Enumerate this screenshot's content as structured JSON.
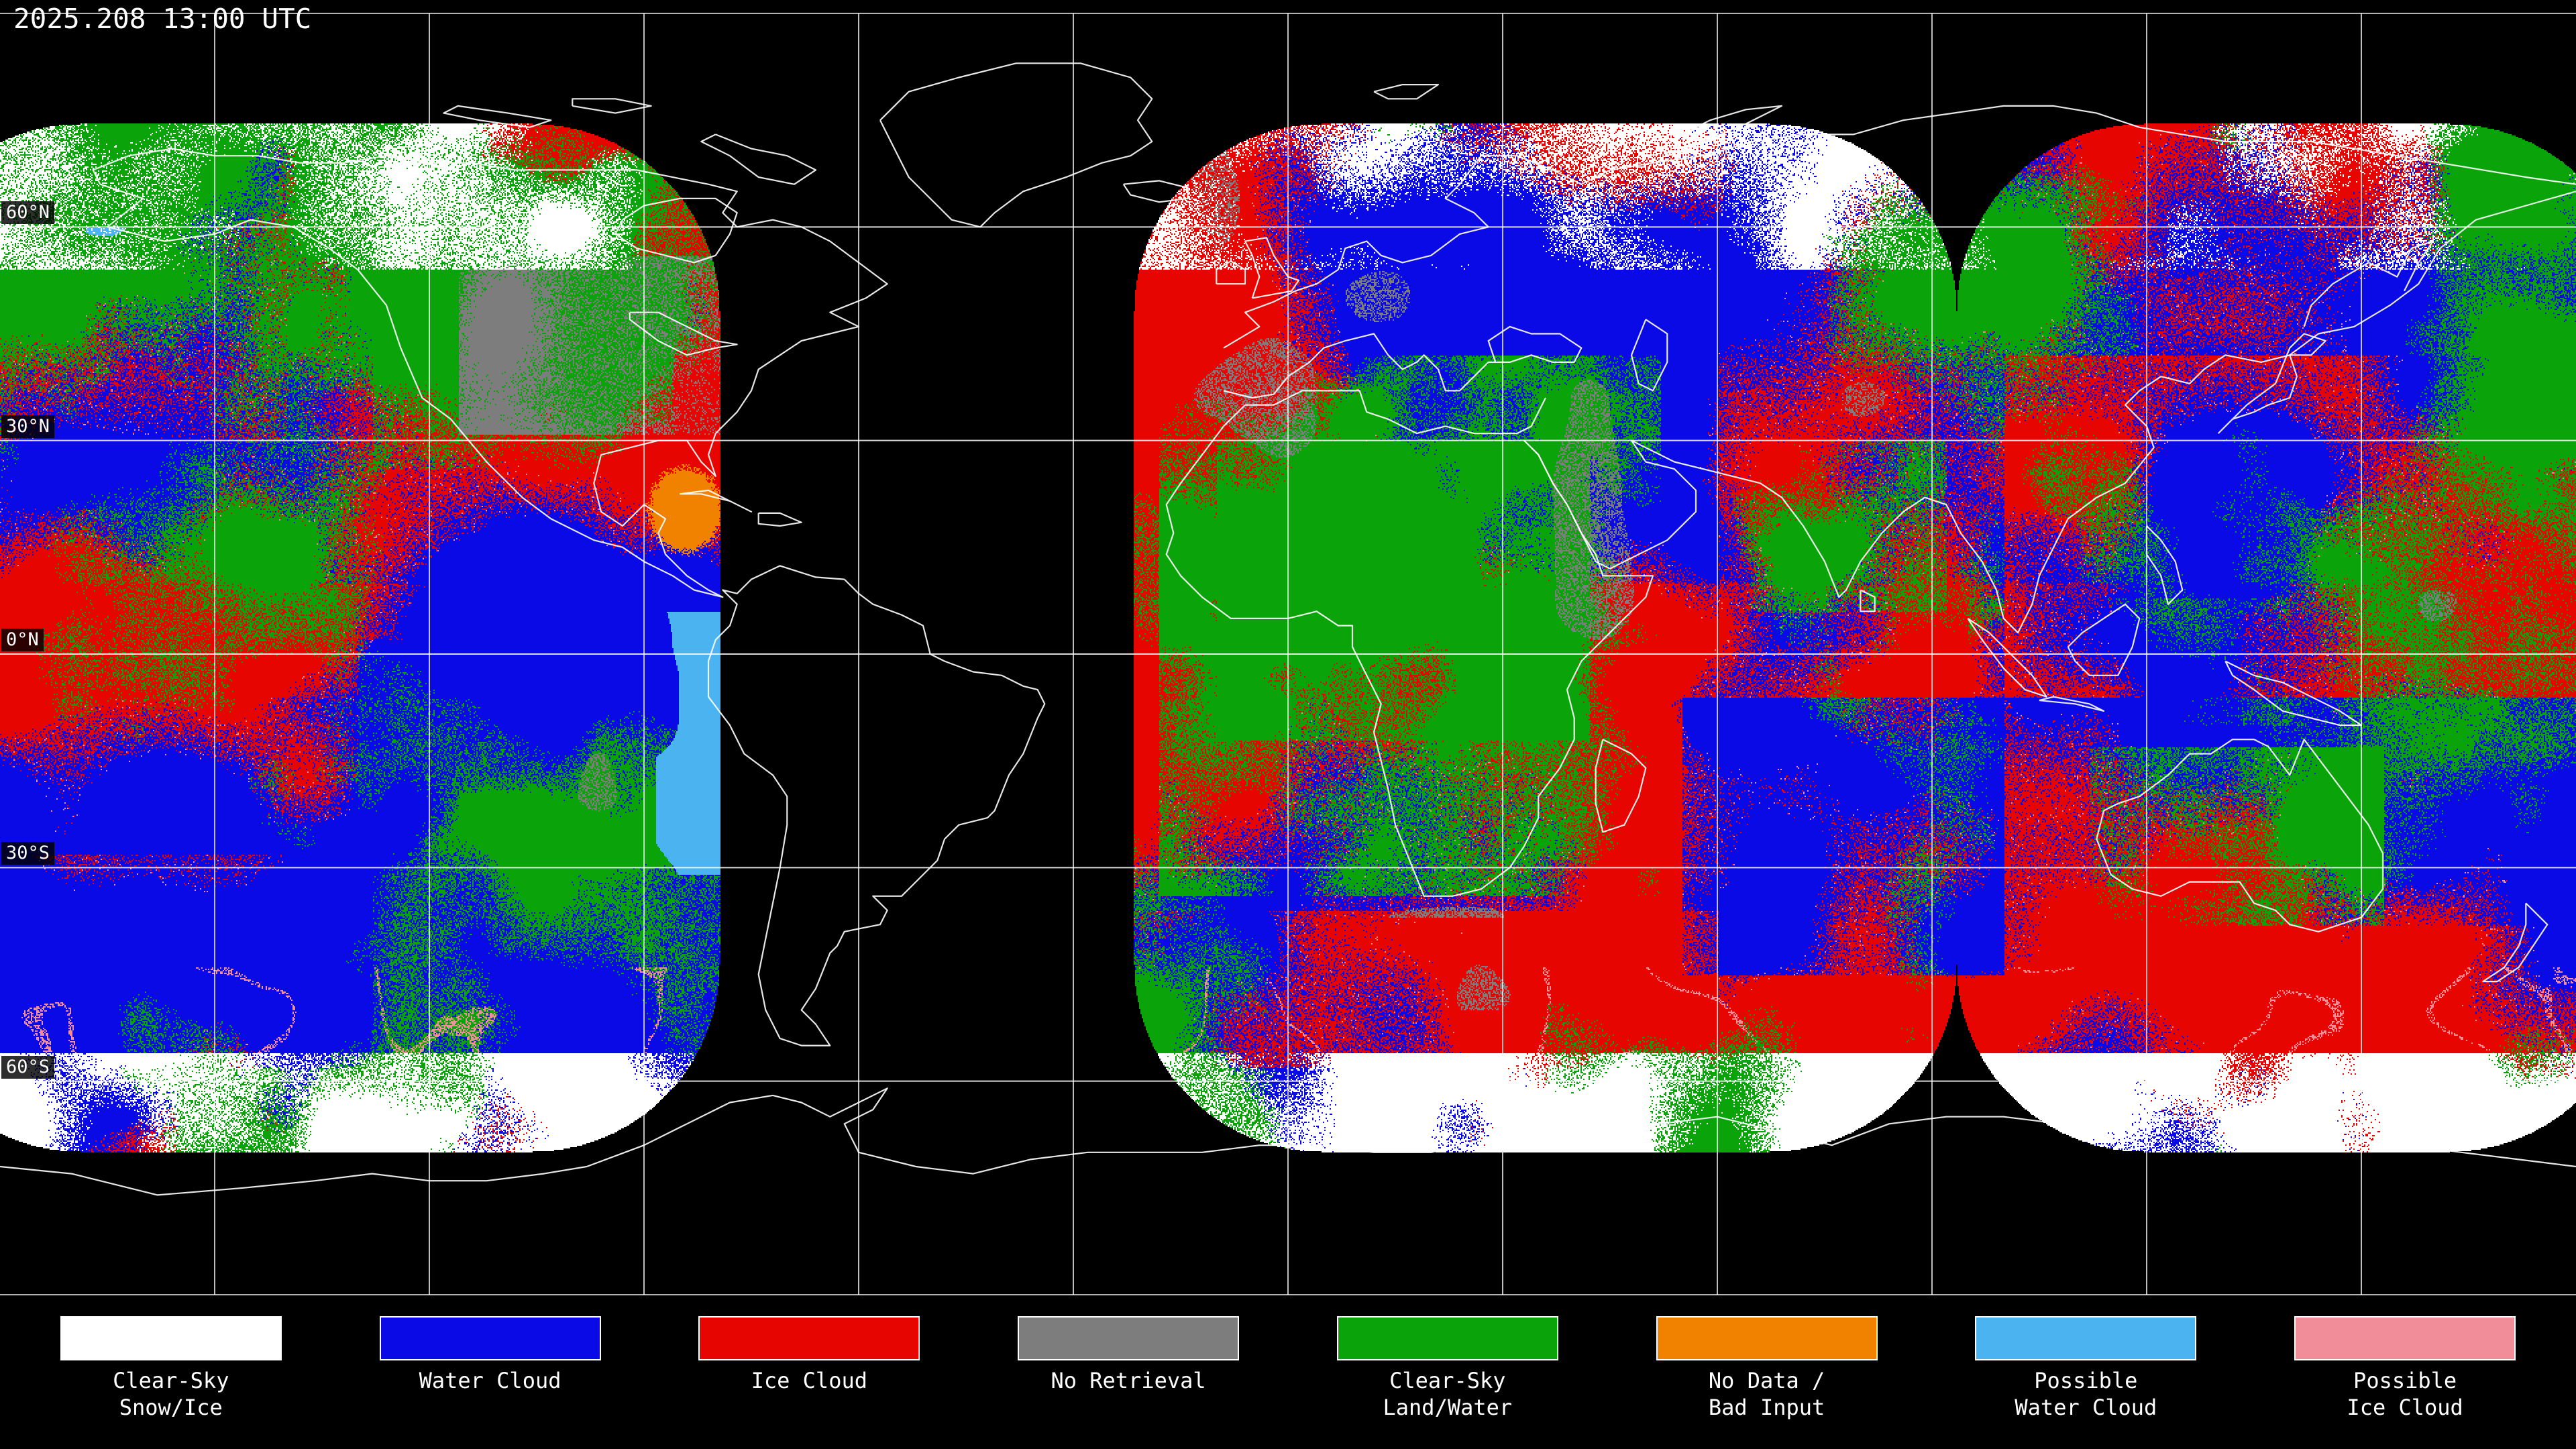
{
  "header": {
    "timestamp": "2025.208 13:00 UTC"
  },
  "map": {
    "background_color": "#000000",
    "coastline_color": "#ffffff",
    "grid_color": "#ffffff",
    "latitude_labels": [
      {
        "label": "60°N",
        "lat": 60
      },
      {
        "label": "30°N",
        "lat": 30
      },
      {
        "label": "0°N",
        "lat": 0
      },
      {
        "label": "30°S",
        "lat": -30
      },
      {
        "label": "60°S",
        "lat": -60
      }
    ]
  },
  "legend": {
    "items": [
      {
        "id": "clear-sky-snow-ice",
        "color": "#ffffff",
        "line1": "Clear-Sky",
        "line2": "Snow/Ice"
      },
      {
        "id": "water-cloud",
        "color": "#0a0ae6",
        "line1": "Water Cloud",
        "line2": ""
      },
      {
        "id": "ice-cloud",
        "color": "#e60500",
        "line1": "Ice Cloud",
        "line2": ""
      },
      {
        "id": "no-retrieval",
        "color": "#7d7d7d",
        "line1": "No Retrieval",
        "line2": ""
      },
      {
        "id": "clear-sky-land-water",
        "color": "#0aa30a",
        "line1": "Clear-Sky",
        "line2": "Land/Water"
      },
      {
        "id": "no-data-bad-input",
        "color": "#f08200",
        "line1": "No Data /",
        "line2": "Bad Input"
      },
      {
        "id": "possible-water-cloud",
        "color": "#4ab3f0",
        "line1": "Possible",
        "line2": "Water Cloud"
      },
      {
        "id": "possible-ice-cloud",
        "color": "#f08d99",
        "line1": "Possible",
        "line2": "Ice Cloud"
      }
    ]
  }
}
